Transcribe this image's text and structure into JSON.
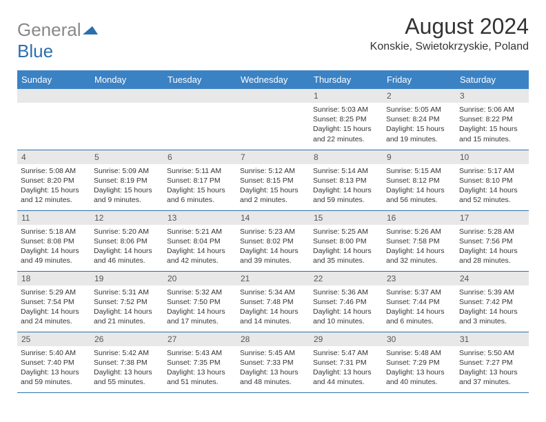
{
  "logo": {
    "part1": "General",
    "part2": "Blue",
    "icon_color": "#2c6fad"
  },
  "title": "August 2024",
  "location": "Konskie, Swietokrzyskie, Poland",
  "day_headers": [
    "Sunday",
    "Monday",
    "Tuesday",
    "Wednesday",
    "Thursday",
    "Friday",
    "Saturday"
  ],
  "colors": {
    "header_bg": "#3b82c4",
    "border": "#2c6fad",
    "daynum_bg": "#e8e8e8",
    "text": "#333"
  },
  "font": {
    "title_size": 32,
    "location_size": 16,
    "header_size": 13,
    "daynum_size": 12,
    "content_size": 10.5
  },
  "weeks": [
    [
      {
        "n": "",
        "lines": []
      },
      {
        "n": "",
        "lines": []
      },
      {
        "n": "",
        "lines": []
      },
      {
        "n": "",
        "lines": []
      },
      {
        "n": "1",
        "lines": [
          "Sunrise: 5:03 AM",
          "Sunset: 8:25 PM",
          "Daylight: 15 hours and 22 minutes."
        ]
      },
      {
        "n": "2",
        "lines": [
          "Sunrise: 5:05 AM",
          "Sunset: 8:24 PM",
          "Daylight: 15 hours and 19 minutes."
        ]
      },
      {
        "n": "3",
        "lines": [
          "Sunrise: 5:06 AM",
          "Sunset: 8:22 PM",
          "Daylight: 15 hours and 15 minutes."
        ]
      }
    ],
    [
      {
        "n": "4",
        "lines": [
          "Sunrise: 5:08 AM",
          "Sunset: 8:20 PM",
          "Daylight: 15 hours and 12 minutes."
        ]
      },
      {
        "n": "5",
        "lines": [
          "Sunrise: 5:09 AM",
          "Sunset: 8:19 PM",
          "Daylight: 15 hours and 9 minutes."
        ]
      },
      {
        "n": "6",
        "lines": [
          "Sunrise: 5:11 AM",
          "Sunset: 8:17 PM",
          "Daylight: 15 hours and 6 minutes."
        ]
      },
      {
        "n": "7",
        "lines": [
          "Sunrise: 5:12 AM",
          "Sunset: 8:15 PM",
          "Daylight: 15 hours and 2 minutes."
        ]
      },
      {
        "n": "8",
        "lines": [
          "Sunrise: 5:14 AM",
          "Sunset: 8:13 PM",
          "Daylight: 14 hours and 59 minutes."
        ]
      },
      {
        "n": "9",
        "lines": [
          "Sunrise: 5:15 AM",
          "Sunset: 8:12 PM",
          "Daylight: 14 hours and 56 minutes."
        ]
      },
      {
        "n": "10",
        "lines": [
          "Sunrise: 5:17 AM",
          "Sunset: 8:10 PM",
          "Daylight: 14 hours and 52 minutes."
        ]
      }
    ],
    [
      {
        "n": "11",
        "lines": [
          "Sunrise: 5:18 AM",
          "Sunset: 8:08 PM",
          "Daylight: 14 hours and 49 minutes."
        ]
      },
      {
        "n": "12",
        "lines": [
          "Sunrise: 5:20 AM",
          "Sunset: 8:06 PM",
          "Daylight: 14 hours and 46 minutes."
        ]
      },
      {
        "n": "13",
        "lines": [
          "Sunrise: 5:21 AM",
          "Sunset: 8:04 PM",
          "Daylight: 14 hours and 42 minutes."
        ]
      },
      {
        "n": "14",
        "lines": [
          "Sunrise: 5:23 AM",
          "Sunset: 8:02 PM",
          "Daylight: 14 hours and 39 minutes."
        ]
      },
      {
        "n": "15",
        "lines": [
          "Sunrise: 5:25 AM",
          "Sunset: 8:00 PM",
          "Daylight: 14 hours and 35 minutes."
        ]
      },
      {
        "n": "16",
        "lines": [
          "Sunrise: 5:26 AM",
          "Sunset: 7:58 PM",
          "Daylight: 14 hours and 32 minutes."
        ]
      },
      {
        "n": "17",
        "lines": [
          "Sunrise: 5:28 AM",
          "Sunset: 7:56 PM",
          "Daylight: 14 hours and 28 minutes."
        ]
      }
    ],
    [
      {
        "n": "18",
        "lines": [
          "Sunrise: 5:29 AM",
          "Sunset: 7:54 PM",
          "Daylight: 14 hours and 24 minutes."
        ]
      },
      {
        "n": "19",
        "lines": [
          "Sunrise: 5:31 AM",
          "Sunset: 7:52 PM",
          "Daylight: 14 hours and 21 minutes."
        ]
      },
      {
        "n": "20",
        "lines": [
          "Sunrise: 5:32 AM",
          "Sunset: 7:50 PM",
          "Daylight: 14 hours and 17 minutes."
        ]
      },
      {
        "n": "21",
        "lines": [
          "Sunrise: 5:34 AM",
          "Sunset: 7:48 PM",
          "Daylight: 14 hours and 14 minutes."
        ]
      },
      {
        "n": "22",
        "lines": [
          "Sunrise: 5:36 AM",
          "Sunset: 7:46 PM",
          "Daylight: 14 hours and 10 minutes."
        ]
      },
      {
        "n": "23",
        "lines": [
          "Sunrise: 5:37 AM",
          "Sunset: 7:44 PM",
          "Daylight: 14 hours and 6 minutes."
        ]
      },
      {
        "n": "24",
        "lines": [
          "Sunrise: 5:39 AM",
          "Sunset: 7:42 PM",
          "Daylight: 14 hours and 3 minutes."
        ]
      }
    ],
    [
      {
        "n": "25",
        "lines": [
          "Sunrise: 5:40 AM",
          "Sunset: 7:40 PM",
          "Daylight: 13 hours and 59 minutes."
        ]
      },
      {
        "n": "26",
        "lines": [
          "Sunrise: 5:42 AM",
          "Sunset: 7:38 PM",
          "Daylight: 13 hours and 55 minutes."
        ]
      },
      {
        "n": "27",
        "lines": [
          "Sunrise: 5:43 AM",
          "Sunset: 7:35 PM",
          "Daylight: 13 hours and 51 minutes."
        ]
      },
      {
        "n": "28",
        "lines": [
          "Sunrise: 5:45 AM",
          "Sunset: 7:33 PM",
          "Daylight: 13 hours and 48 minutes."
        ]
      },
      {
        "n": "29",
        "lines": [
          "Sunrise: 5:47 AM",
          "Sunset: 7:31 PM",
          "Daylight: 13 hours and 44 minutes."
        ]
      },
      {
        "n": "30",
        "lines": [
          "Sunrise: 5:48 AM",
          "Sunset: 7:29 PM",
          "Daylight: 13 hours and 40 minutes."
        ]
      },
      {
        "n": "31",
        "lines": [
          "Sunrise: 5:50 AM",
          "Sunset: 7:27 PM",
          "Daylight: 13 hours and 37 minutes."
        ]
      }
    ]
  ]
}
